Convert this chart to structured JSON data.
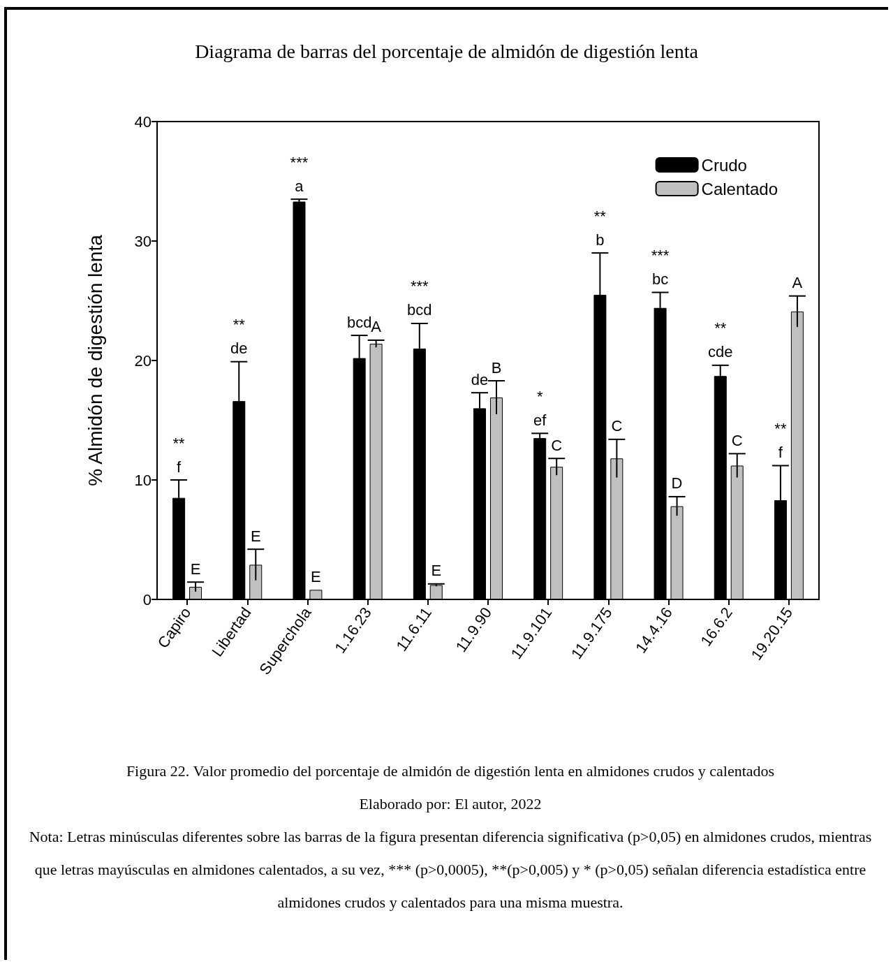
{
  "chart_data": {
    "type": "bar",
    "title": "Diagrama de barras del porcentaje de almidón de digestión lenta",
    "ylabel": "% Almidón de digestión lenta",
    "categories": [
      "Capiro",
      "Libertad",
      "Superchola",
      "1.16.23",
      "11.6.11",
      "11.9.90",
      "11.9.101",
      "11.9.175",
      "14.4.16",
      "16.6.2",
      "19.20.15"
    ],
    "series": [
      {
        "name": "Crudo",
        "color": "#000000",
        "values": [
          8.5,
          16.6,
          33.3,
          20.2,
          21.0,
          16.0,
          13.5,
          25.5,
          24.4,
          18.7,
          8.3
        ],
        "errors": [
          1.5,
          3.3,
          0.2,
          1.9,
          2.1,
          1.3,
          0.4,
          3.5,
          1.3,
          0.9,
          2.9
        ],
        "value_labels": [
          "**\nf",
          "**\nde",
          "***\na",
          "bcd",
          "***\nbcd",
          "de",
          "*\nef",
          "**\nb",
          "***\nbc",
          "**\ncde",
          "**\nf"
        ]
      },
      {
        "name": "Calentado",
        "color": "#c0c0c0",
        "values": [
          1.05,
          2.9,
          0.8,
          21.4,
          1.2,
          16.9,
          11.1,
          11.8,
          7.8,
          11.2,
          24.1
        ],
        "errors": [
          0.4,
          1.3,
          null,
          0.3,
          0.1,
          1.4,
          0.7,
          1.6,
          0.8,
          1.0,
          1.3
        ],
        "value_labels": [
          "E",
          "E",
          "E",
          "A",
          "E",
          "B",
          "C",
          "C",
          "D",
          "C",
          "A"
        ]
      }
    ],
    "ylim": [
      0,
      40
    ],
    "yticks": [
      0,
      10,
      20,
      30,
      40
    ],
    "grid": false,
    "legend": "top right",
    "annotations": [
      "Figura 22. Valor promedio del porcentaje de almidón de digestión lenta en almidones crudos y calentados",
      "Elaborado por: El autor, 2022",
      "Nota: Letras minúsculas diferentes sobre las barras de la figura presentan diferencia significativa (p>0,05) en almidones crudos, mientras que letras mayúsculas en almidones calentados, a su vez, *** (p>0,0005), **(p>0,005) y * (p>0,05) señalan diferencia estadística entre almidones crudos y calentados para una misma muestra."
    ]
  }
}
